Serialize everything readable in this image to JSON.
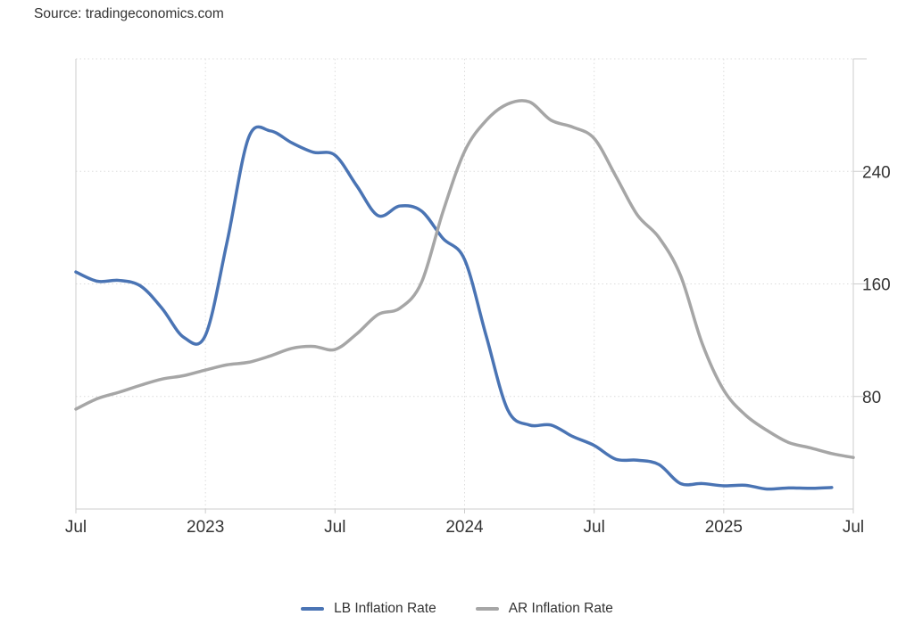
{
  "page": {
    "source_label": "Source: tradingeconomics.com"
  },
  "chart_data": {
    "type": "line",
    "title": "",
    "xlabel": "",
    "ylabel": "",
    "categories": [
      "Jul 2022",
      "Aug 2022",
      "Sep 2022",
      "Oct 2022",
      "Nov 2022",
      "Dec 2022",
      "Jan 2023",
      "Feb 2023",
      "Mar 2023",
      "Apr 2023",
      "May 2023",
      "Jun 2023",
      "Jul 2023",
      "Aug 2023",
      "Sep 2023",
      "Oct 2023",
      "Nov 2023",
      "Dec 2023",
      "Jan 2024",
      "Feb 2024",
      "Mar 2024",
      "Apr 2024",
      "May 2024",
      "Jun 2024",
      "Jul 2024",
      "Aug 2024",
      "Sep 2024",
      "Oct 2024",
      "Nov 2024",
      "Dec 2024",
      "Jan 2025",
      "Feb 2025",
      "Mar 2025",
      "Apr 2025",
      "May 2025",
      "Jun 2025",
      "Jul 2025"
    ],
    "series": [
      {
        "name": "LB Inflation Rate",
        "color": "#4a74b4",
        "values": [
          168.5,
          161.9,
          162.5,
          158.5,
          142.4,
          122.0,
          123.5,
          189.7,
          264.0,
          268.8,
          260.3,
          253.6,
          251.5,
          229.9,
          208.5,
          215.4,
          211.9,
          192.3,
          177.3,
          123.1,
          70.4,
          59.7,
          59.7,
          51.6,
          45.2,
          35.4,
          34.7,
          31.6,
          18.1,
          18.1,
          16.5,
          16.9,
          14.2,
          15.0,
          14.7,
          15.3,
          null
        ]
      },
      {
        "name": "AR Inflation Rate",
        "color": "#a6a6a6",
        "values": [
          71.0,
          78.5,
          83.0,
          88.0,
          92.4,
          94.8,
          98.8,
          102.5,
          104.3,
          108.8,
          114.2,
          115.6,
          113.4,
          124.4,
          138.3,
          142.7,
          160.9,
          211.4,
          254.2,
          276.2,
          287.9,
          289.4,
          276.4,
          271.5,
          263.4,
          236.7,
          209.0,
          193.0,
          166.0,
          117.8,
          84.5,
          66.9,
          55.9,
          47.3,
          43.5,
          39.4,
          36.6
        ]
      }
    ],
    "ylim": [
      0,
      320
    ],
    "yticks": [
      80,
      160,
      240
    ],
    "xticks": [
      {
        "index": 0,
        "label": "Jul"
      },
      {
        "index": 6,
        "label": "2023"
      },
      {
        "index": 12,
        "label": "Jul"
      },
      {
        "index": 18,
        "label": "2024"
      },
      {
        "index": 24,
        "label": "Jul"
      },
      {
        "index": 30,
        "label": "2025"
      },
      {
        "index": 36,
        "label": "Jul"
      }
    ],
    "grid": "dotted",
    "legend_position": "bottom",
    "grid_color": "#dcdcdc",
    "border_color": "#cccccc"
  }
}
